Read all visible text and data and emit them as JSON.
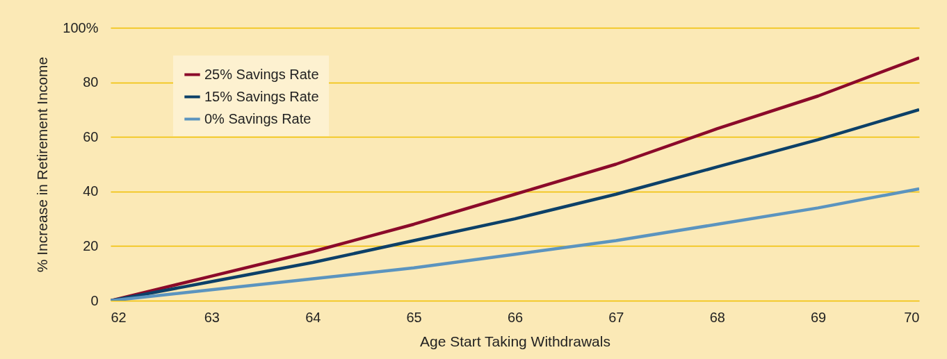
{
  "chart_data": {
    "type": "line",
    "xlabel": "Age Start Taking Withdrawals",
    "ylabel": "% Increase in Retirement Income",
    "x": [
      62,
      63,
      64,
      65,
      66,
      67,
      68,
      69,
      70
    ],
    "xlim": [
      62,
      70
    ],
    "xticks": [
      62,
      63,
      64,
      65,
      66,
      67,
      68,
      69,
      70
    ],
    "ylim": [
      0,
      100
    ],
    "yticks": [
      0,
      20,
      40,
      60,
      80,
      {
        "value": 100,
        "label": "100%"
      }
    ],
    "grid": "y",
    "legend": "top left",
    "marker": "none",
    "line_style": "solid",
    "series": [
      {
        "name": "25% Savings Rate",
        "color": "#8b0a2a",
        "values": [
          0,
          9,
          18,
          28,
          39,
          50,
          63,
          75,
          89
        ]
      },
      {
        "name": "15% Savings Rate",
        "color": "#0c4068",
        "values": [
          0,
          7,
          14,
          22,
          30,
          39,
          49,
          59,
          70
        ]
      },
      {
        "name": "0% Savings Rate",
        "color": "#5b94bf",
        "values": [
          0,
          4,
          8,
          12,
          17,
          22,
          28,
          34,
          41
        ]
      }
    ]
  }
}
